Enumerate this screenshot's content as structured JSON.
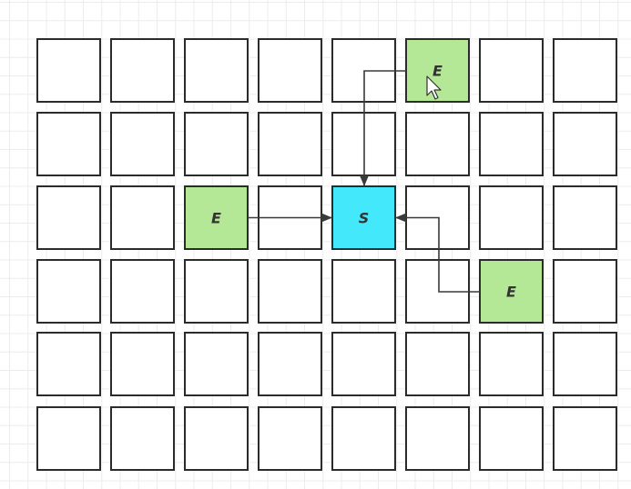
{
  "grid": {
    "rows": 6,
    "cols": 8
  },
  "colors": {
    "empty_cell": "#ffffff",
    "start_cell": "#44e8fb",
    "end_cell": "#b4e896",
    "border": "#2b2b2b",
    "arrow": "#3a3a3a"
  },
  "cells": {
    "start": {
      "label": "S",
      "row": 2,
      "col": 4
    },
    "ends": [
      {
        "label": "E",
        "row": 0,
        "col": 5
      },
      {
        "label": "E",
        "row": 2,
        "col": 2
      },
      {
        "label": "E",
        "row": 3,
        "col": 6
      }
    ]
  },
  "links": [
    {
      "from": "end-0",
      "to": "start",
      "route": "left-then-down"
    },
    {
      "from": "end-1",
      "to": "start",
      "route": "straight-right"
    },
    {
      "from": "end-2",
      "to": "start",
      "route": "left-up-left"
    }
  ],
  "pointer": {
    "icon": "mouse-pointer-icon"
  }
}
